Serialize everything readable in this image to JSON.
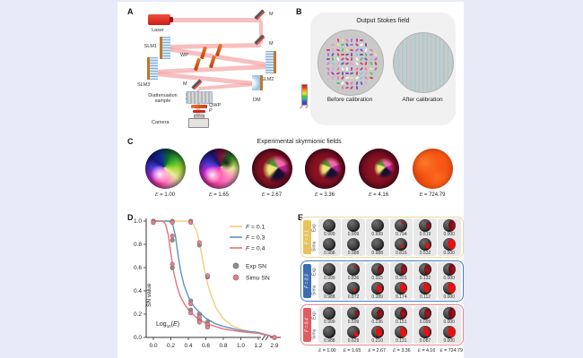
{
  "panel_labels": {
    "a": "A",
    "b": "B",
    "c": "C",
    "d": "D",
    "e": "E"
  },
  "panel_a": {
    "labels": {
      "laser": "Laser",
      "m": "M",
      "slm1": "SLM1",
      "slm2": "SLM2",
      "slm3": "SLM3",
      "wp": "WP",
      "dm": "DM",
      "sample_l1": "Diattenuation",
      "sample_l2": "sample",
      "qwp": "QWP",
      "p": "P",
      "camera": "Camera"
    }
  },
  "panel_b": {
    "title": "Output Stokes field",
    "before": "Before calibration",
    "after": "After calibration"
  },
  "panel_c": {
    "title": "Experimental skyrmionic fields",
    "items": [
      "E = 1.00",
      "E = 1.65",
      "E = 2.67",
      "E = 3.36",
      "E = 4.16",
      "E = 724.79"
    ]
  },
  "chart_data": {
    "type": "line+scatter",
    "xlabel": "Log10(E)",
    "ylabel": "SN value",
    "ylim": [
      0,
      1
    ],
    "x_ticks": [
      0.0,
      0.2,
      0.4,
      0.6,
      0.8,
      1.0,
      1.2,
      2.9
    ],
    "y_ticks": [
      0.0,
      0.2,
      0.4,
      0.6,
      0.8,
      1.0
    ],
    "axis_break_between": [
      1.2,
      2.9
    ],
    "grid": false,
    "legend_position": "top-right",
    "curves": [
      {
        "name": "F = 0.1",
        "color": "#f0cf7d",
        "points": [
          [
            0,
            1
          ],
          [
            0.3,
            1
          ],
          [
            0.42,
            0.998
          ],
          [
            0.46,
            0.97
          ],
          [
            0.5,
            0.9
          ],
          [
            0.54,
            0.76
          ],
          [
            0.58,
            0.6
          ],
          [
            0.62,
            0.46
          ],
          [
            0.66,
            0.36
          ],
          [
            0.72,
            0.25
          ],
          [
            0.8,
            0.16
          ],
          [
            0.9,
            0.1
          ],
          [
            1.0,
            0.07
          ],
          [
            1.1,
            0.05
          ],
          [
            1.2,
            0.04
          ],
          [
            2.9,
            0.004
          ]
        ]
      },
      {
        "name": "F = 0.3",
        "color": "#5f93c8",
        "points": [
          [
            0,
            1
          ],
          [
            0.18,
            1
          ],
          [
            0.22,
            0.97
          ],
          [
            0.25,
            0.88
          ],
          [
            0.28,
            0.72
          ],
          [
            0.31,
            0.58
          ],
          [
            0.35,
            0.45
          ],
          [
            0.4,
            0.35
          ],
          [
            0.45,
            0.28
          ],
          [
            0.5,
            0.235
          ],
          [
            0.6,
            0.165
          ],
          [
            0.7,
            0.12
          ],
          [
            0.8,
            0.095
          ],
          [
            1.0,
            0.06
          ],
          [
            1.2,
            0.042
          ],
          [
            2.9,
            0.004
          ]
        ]
      },
      {
        "name": "F = 0.4",
        "color": "#e4737b",
        "points": [
          [
            0,
            1
          ],
          [
            0.11,
            1
          ],
          [
            0.14,
            0.97
          ],
          [
            0.17,
            0.88
          ],
          [
            0.2,
            0.72
          ],
          [
            0.23,
            0.57
          ],
          [
            0.27,
            0.44
          ],
          [
            0.31,
            0.35
          ],
          [
            0.36,
            0.28
          ],
          [
            0.42,
            0.22
          ],
          [
            0.5,
            0.165
          ],
          [
            0.6,
            0.12
          ],
          [
            0.8,
            0.072
          ],
          [
            1.0,
            0.05
          ],
          [
            1.2,
            0.035
          ],
          [
            2.9,
            0.003
          ]
        ]
      }
    ],
    "scatter": [
      {
        "name": "Exp SN",
        "color": "#8f8f8f",
        "ring": "#6a6a6a",
        "points": [
          [
            0,
            0.999
          ],
          [
            0,
            0.999
          ],
          [
            0,
            0.999
          ],
          [
            0.217,
            0.999
          ],
          [
            0.217,
            0.836
          ],
          [
            0.217,
            0.599
          ],
          [
            0.427,
            0.999
          ],
          [
            0.427,
            0.315
          ],
          [
            0.427,
            0.236
          ],
          [
            0.526,
            0.794
          ],
          [
            0.526,
            0.201
          ],
          [
            0.526,
            0.151
          ],
          [
            0.619,
            0.519
          ],
          [
            0.619,
            0.132
          ],
          [
            0.619,
            0.099
          ],
          [
            2.86,
            0.0
          ],
          [
            2.86,
            0.0
          ],
          [
            2.86,
            0.0
          ]
        ]
      },
      {
        "name": "Simu SN",
        "color": "#d9858f",
        "ring": "#b05560",
        "points": [
          [
            0,
            0.988
          ],
          [
            0,
            0.988
          ],
          [
            0,
            0.988
          ],
          [
            0.217,
            0.988
          ],
          [
            0.217,
            0.872
          ],
          [
            0.217,
            0.629
          ],
          [
            0.427,
            0.988
          ],
          [
            0.427,
            0.289
          ],
          [
            0.427,
            0.21
          ],
          [
            0.526,
            0.816
          ],
          [
            0.526,
            0.174
          ],
          [
            0.526,
            0.131
          ],
          [
            0.619,
            0.532
          ],
          [
            0.619,
            0.112
          ],
          [
            0.619,
            0.087
          ],
          [
            2.86,
            0.0
          ],
          [
            2.86,
            0.0
          ],
          [
            2.86,
            0.0
          ]
        ]
      }
    ]
  },
  "panel_e": {
    "groups": [
      {
        "label": "F = 0.1",
        "border": "#edd79c",
        "tag": "#e8c25c",
        "rows": [
          {
            "label": "Exp",
            "values": [
              "0.999",
              "0.999",
              "0.999",
              "0.794",
              "0.519",
              "0.000"
            ]
          },
          {
            "label": "Simu",
            "values": [
              "0.988",
              "0.988",
              "0.988",
              "0.816",
              "0.532",
              "0.000"
            ]
          }
        ]
      },
      {
        "label": "F = 0.3",
        "border": "#4a7fc4",
        "tag": "#3c6cb4",
        "rows": [
          {
            "label": "Exp",
            "values": [
              "0.999",
              "0.836",
              "0.315",
              "0.201",
              "0.132",
              "0.000"
            ]
          },
          {
            "label": "Simu",
            "values": [
              "0.988",
              "0.872",
              "0.289",
              "0.174",
              "0.112",
              "0.000"
            ]
          }
        ]
      },
      {
        "label": "F = 0.4",
        "border": "#e8888e",
        "tag": "#e05a60",
        "rows": [
          {
            "label": "Exp",
            "values": [
              "0.999",
              "0.599",
              "0.236",
              "0.151",
              "0.099",
              "0.000"
            ]
          },
          {
            "label": "Simu",
            "values": [
              "0.988",
              "0.629",
              "0.210",
              "0.131",
              "0.087",
              "0.000"
            ]
          }
        ]
      }
    ],
    "col_labels": [
      "E = 1.00",
      "E = 1.65",
      "E = 2.67",
      "E = 3.36",
      "E = 4.16",
      "E = 724.79"
    ]
  }
}
